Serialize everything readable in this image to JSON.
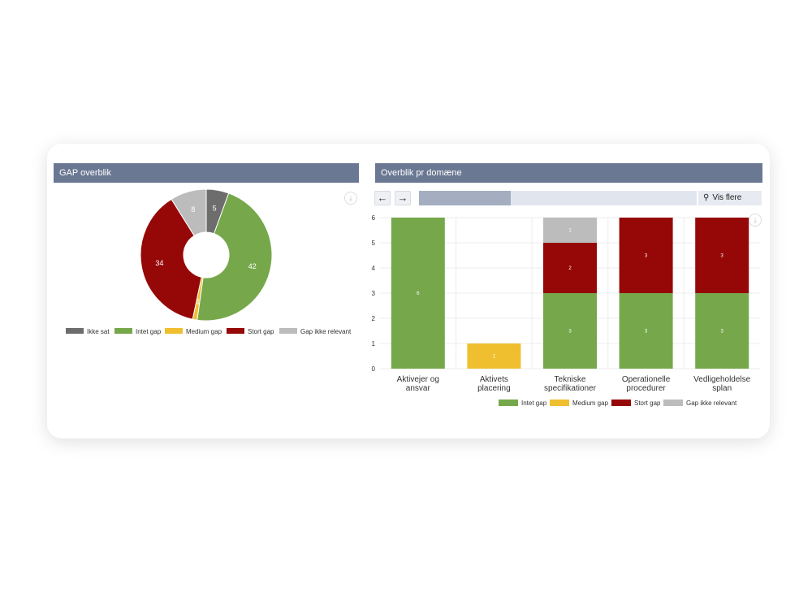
{
  "colors": {
    "ikke_sat": "#6d6d6d",
    "intet_gap": "#76a84b",
    "medium_gap": "#f0bf30",
    "stort_gap": "#960808",
    "gap_ikke_relevant": "#bcbcbc",
    "header": "#6b7893"
  },
  "left_panel": {
    "title": "GAP overblik"
  },
  "right_panel": {
    "title": "Overblik pr domæne",
    "prev_icon": "arrow-left-icon",
    "next_icon": "arrow-right-icon",
    "scroll_position": 0.33,
    "vis_flere_label": "Vis flere"
  },
  "chart_data": [
    {
      "type": "pie",
      "title": "",
      "legend_position": "bottom",
      "slices": [
        {
          "label": "Ikke sat",
          "value": 5,
          "color": "#6d6d6d"
        },
        {
          "label": "Intet gap",
          "value": 42,
          "color": "#76a84b"
        },
        {
          "label": "Medium gap",
          "value": 1,
          "color": "#f0bf30"
        },
        {
          "label": "Stort gap",
          "value": 34,
          "color": "#960808"
        },
        {
          "label": "Gap ikke relevant",
          "value": 8,
          "color": "#bcbcbc"
        }
      ]
    },
    {
      "type": "bar",
      "stacked": true,
      "title": "",
      "legend_position": "bottom",
      "ylim": [
        0,
        6
      ],
      "yticks": [
        0,
        1,
        2,
        3,
        4,
        5,
        6
      ],
      "categories": [
        [
          "Aktivejer og",
          "ansvar"
        ],
        [
          "Aktivets",
          "placering"
        ],
        [
          "Tekniske",
          "specifikationer"
        ],
        [
          "Operationelle",
          "procedurer"
        ],
        [
          "Vedligeholdelse",
          "splan"
        ]
      ],
      "series": [
        {
          "name": "Intet gap",
          "color": "#76a84b",
          "values": [
            6,
            0,
            3,
            3,
            3
          ]
        },
        {
          "name": "Medium gap",
          "color": "#f0bf30",
          "values": [
            0,
            1,
            0,
            0,
            0
          ]
        },
        {
          "name": "Stort gap",
          "color": "#960808",
          "values": [
            0,
            0,
            2,
            3,
            3
          ]
        },
        {
          "name": "Gap ikke relevant",
          "color": "#bcbcbc",
          "values": [
            0,
            0,
            1,
            0,
            0
          ]
        }
      ]
    }
  ]
}
